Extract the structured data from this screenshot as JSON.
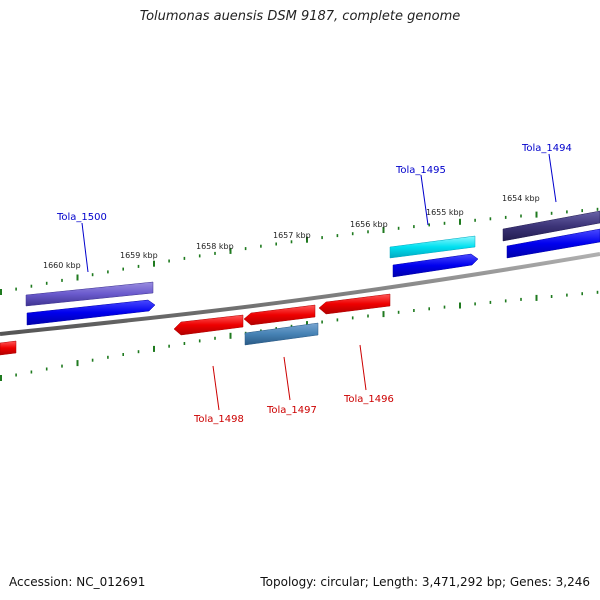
{
  "title": "Tolumonas auensis DSM 9187, complete genome",
  "footer": {
    "accession": "Accession: NC_012691",
    "topology": "Topology: circular; Length: 3,471,292 bp; Genes: 3,246"
  },
  "colors": {
    "backbone": "#808080",
    "ticks": "#1f7a1f",
    "forward_label": "#0000cc",
    "reverse_label": "#cc0000",
    "cds_forward": "#0000ee",
    "cds_reverse": "#ee0000"
  },
  "ruler_labels": [
    "1660 kbp",
    "1659 kbp",
    "1658 kbp",
    "1657 kbp",
    "1656 kbp",
    "1655 kbp",
    "1654 kbp"
  ],
  "gene_labels": {
    "forward": [
      "Tola_1500",
      "Tola_1495",
      "Tola_1494"
    ],
    "reverse": [
      "Tola_1498",
      "Tola_1497",
      "Tola_1496"
    ]
  }
}
